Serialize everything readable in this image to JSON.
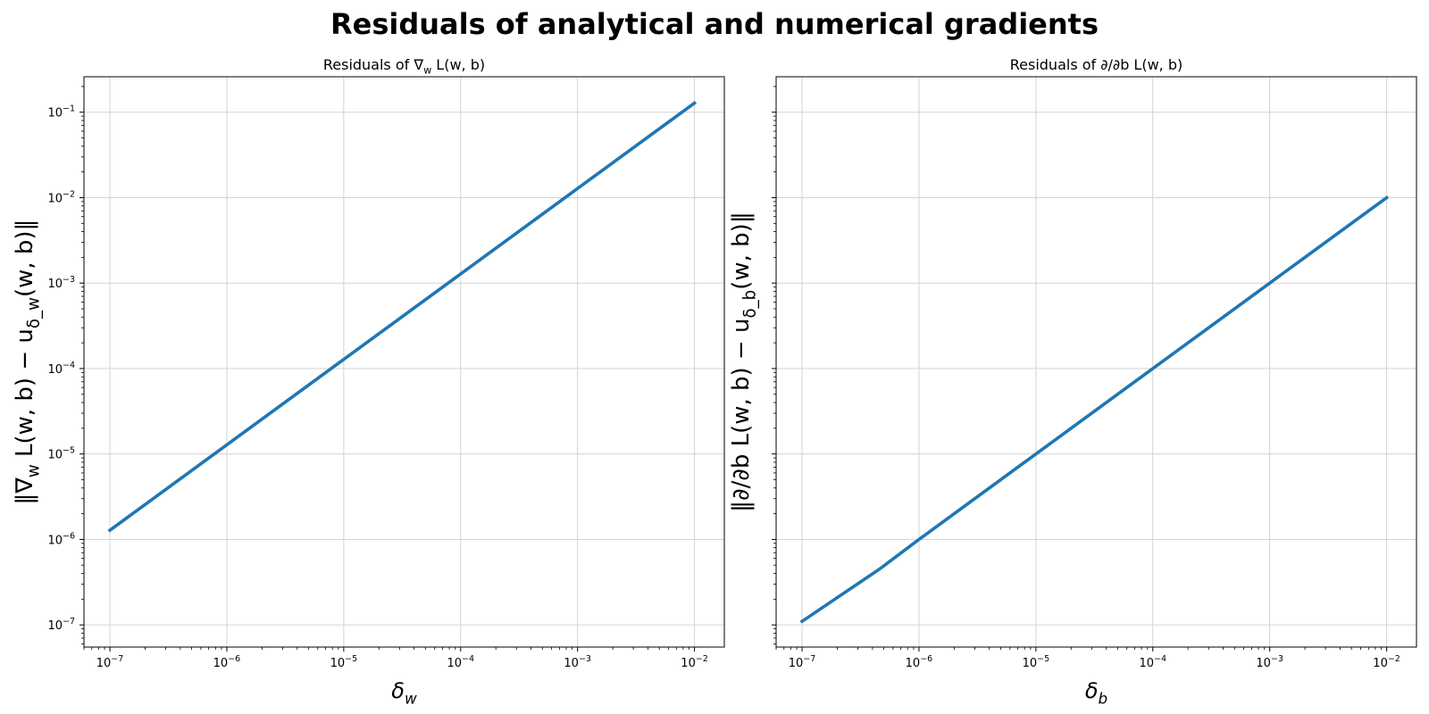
{
  "figure": {
    "suptitle": "Residuals of analytical and numerical gradients"
  },
  "chart_data": [
    {
      "type": "line",
      "title": "Residuals of ∇_w L(w, b)",
      "xlabel": "δ_w",
      "ylabel": "‖∇_w L(w, b) − u_{δ_w}(w, b)‖",
      "xscale": "log",
      "yscale": "log",
      "xlim": [
        6e-08,
        0.018
      ],
      "ylim": [
        5.5e-08,
        0.26
      ],
      "xticks": [
        "10^-7",
        "10^-6",
        "10^-5",
        "10^-4",
        "10^-3",
        "10^-2"
      ],
      "yticks": [
        "10^-7",
        "10^-6",
        "10^-5",
        "10^-4",
        "10^-3",
        "10^-2",
        "10^-1"
      ],
      "grid": true,
      "color": "#1f77b4",
      "x": [
        1e-07,
        1e-06,
        1e-05,
        0.0001,
        0.001,
        0.01
      ],
      "y": [
        1.28e-06,
        1.28e-05,
        0.000128,
        0.00128,
        0.0128,
        0.128
      ]
    },
    {
      "type": "line",
      "title": "Residuals of ∂/∂b L(w, b)",
      "xlabel": "δ_b",
      "ylabel": "‖∂/∂b L(w, b) − u_{δ_b}(w, b)‖",
      "xscale": "log",
      "yscale": "log",
      "xlim": [
        6e-08,
        0.018
      ],
      "ylim": [
        5.5e-08,
        0.26
      ],
      "xticks": [
        "10^-7",
        "10^-6",
        "10^-5",
        "10^-4",
        "10^-3",
        "10^-2"
      ],
      "yticks": [
        "10^-7",
        "10^-6",
        "10^-5",
        "10^-4",
        "10^-3",
        "10^-2",
        "10^-1"
      ],
      "grid": true,
      "color": "#1f77b4",
      "x": [
        1e-07,
        4.6e-07,
        1e-06,
        1e-05,
        0.0001,
        0.001,
        0.01
      ],
      "y": [
        1.1e-07,
        4.5e-07,
        1e-06,
        1e-05,
        0.0001,
        0.001,
        0.01
      ]
    }
  ]
}
